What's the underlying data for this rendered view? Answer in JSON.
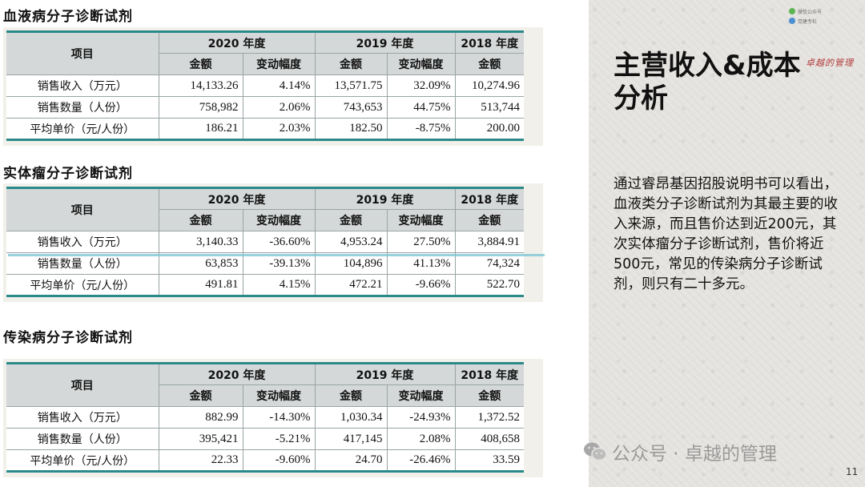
{
  "sections": [
    {
      "title": "血液病分子诊断试剂",
      "header": {
        "item": "项目",
        "year2020": "2020 年度",
        "year2019": "2019 年度",
        "year2018": "2018 年度",
        "amount": "金额",
        "change": "变动幅度"
      },
      "rows": [
        {
          "label": "销售收入（万元）",
          "v2020": "14,133.26",
          "c2020": "4.14%",
          "v2019": "13,571.75",
          "c2019": "32.09%",
          "v2018": "10,274.96"
        },
        {
          "label": "销售数量（人份）",
          "v2020": "758,982",
          "c2020": "2.06%",
          "v2019": "743,653",
          "c2019": "44.75%",
          "v2018": "513,744"
        },
        {
          "label": "平均单价（元/人份）",
          "v2020": "186.21",
          "c2020": "2.03%",
          "v2019": "182.50",
          "c2019": "-8.75%",
          "v2018": "200.00"
        }
      ]
    },
    {
      "title": "实体瘤分子诊断试剂",
      "header": {
        "item": "项目",
        "year2020": "2020 年度",
        "year2019": "2019 年度",
        "year2018": "2018 年度",
        "amount": "金额",
        "change": "变动幅度"
      },
      "rows": [
        {
          "label": "销售收入（万元）",
          "v2020": "3,140.33",
          "c2020": "-36.60%",
          "v2019": "4,953.24",
          "c2019": "27.50%",
          "v2018": "3,884.91"
        },
        {
          "label": "销售数量（人份）",
          "v2020": "63,853",
          "c2020": "-39.13%",
          "v2019": "104,896",
          "c2019": "41.13%",
          "v2018": "74,324"
        },
        {
          "label": "平均单价（元/人份）",
          "v2020": "491.81",
          "c2020": "4.15%",
          "v2019": "472.21",
          "c2019": "-9.66%",
          "v2018": "522.70"
        }
      ]
    },
    {
      "title": "传染病分子诊断试剂",
      "header": {
        "item": "项目",
        "year2020": "2020 年度",
        "year2019": "2019 年度",
        "year2018": "2018 年度",
        "amount": "金额",
        "change": "变动幅度"
      },
      "rows": [
        {
          "label": "销售收入（万元）",
          "v2020": "882.99",
          "c2020": "-14.30%",
          "v2019": "1,030.34",
          "c2019": "-24.93%",
          "v2018": "1,372.52"
        },
        {
          "label": "销售数量（人份）",
          "v2020": "395,421",
          "c2020": "-5.21%",
          "v2019": "417,145",
          "c2019": "2.08%",
          "v2018": "408,658"
        },
        {
          "label": "平均单价（元/人份）",
          "v2020": "22.33",
          "c2020": "-9.60%",
          "v2019": "24.70",
          "c2019": "-26.46%",
          "v2018": "33.59"
        }
      ]
    }
  ],
  "panel": {
    "title_line1": "主营收入&成本",
    "title_line2": "分析",
    "body": "通过睿昂基因招股说明书可以看出，血液类分子诊断试剂为其最主要的收入来源，而且售价达到近200元，其次实体瘤分子诊断试剂，售价将近500元，常见的传染病分子诊断试剂，则只有二十多元。",
    "stamp": "卓越的管理",
    "logo_line1": "微信公众号",
    "logo_line2": "党建专栏"
  },
  "watermark": {
    "icon": "wechat-icon",
    "text": "公众号 · 卓越的管理"
  },
  "page_number": "11",
  "colors": {
    "accent": "#2a8a8a",
    "header_bg": "#d5d8d8",
    "panel_bg": "#e7e5e1"
  }
}
